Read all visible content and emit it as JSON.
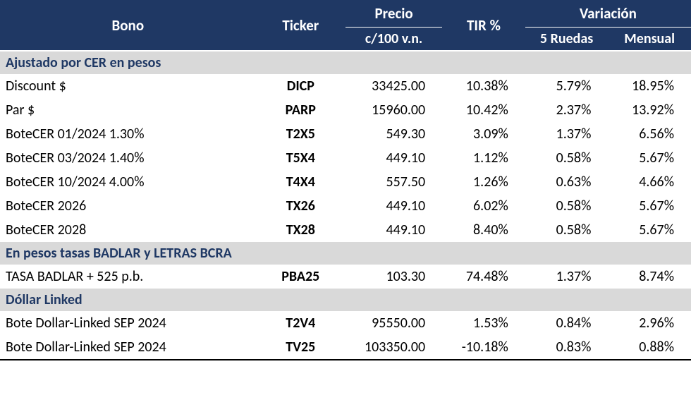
{
  "header": {
    "bono": "Bono",
    "ticker": "Ticker",
    "precio_top": "Precio",
    "precio_sub": "c/100 v.n.",
    "tir": "TIR %",
    "variacion_top": "Variación",
    "variacion_5ruedas": "5 Ruedas",
    "variacion_mensual": "Mensual"
  },
  "styling": {
    "header_bg": "#1f3864",
    "header_fg": "#ffffff",
    "section_bg": "#d9d9d9",
    "section_fg": "#1f3864",
    "body_fg": "#000000",
    "header_fontsize": 21,
    "header_sub_fontsize": 20,
    "section_fontsize": 20,
    "data_fontsize": 20,
    "col_widths_pct": {
      "bono": 37,
      "ticker": 13,
      "precio": 14,
      "tir": 12,
      "ruedas5": 12,
      "mensual": 12
    }
  },
  "sections": [
    {
      "title": "Ajustado por CER en pesos",
      "rows": [
        {
          "bono": "Discount $",
          "ticker": "DICP",
          "precio": "33425.00",
          "tir": "10.38%",
          "ruedas5": "5.79%",
          "mensual": "18.95%"
        },
        {
          "bono": "Par $",
          "ticker": "PARP",
          "precio": "15960.00",
          "tir": "10.42%",
          "ruedas5": "2.37%",
          "mensual": "13.92%"
        },
        {
          "bono": "BoteCER  01/2024  1.30%",
          "ticker": "T2X5",
          "precio": "549.30",
          "tir": "3.09%",
          "ruedas5": "1.37%",
          "mensual": "6.56%"
        },
        {
          "bono": "BoteCER 03/2024  1.40%",
          "ticker": "T5X4",
          "precio": "449.10",
          "tir": "1.12%",
          "ruedas5": "0.58%",
          "mensual": "5.67%"
        },
        {
          "bono": "BoteCER 10/2024  4.00%",
          "ticker": "T4X4",
          "precio": "557.50",
          "tir": "1.26%",
          "ruedas5": "0.63%",
          "mensual": "4.66%"
        },
        {
          "bono": "BoteCER 2026",
          "ticker": "TX26",
          "precio": "449.10",
          "tir": "6.02%",
          "ruedas5": "0.58%",
          "mensual": "5.67%"
        },
        {
          "bono": "BoteCER 2028",
          "ticker": "TX28",
          "precio": "449.10",
          "tir": "8.40%",
          "ruedas5": "0.58%",
          "mensual": "5.67%"
        }
      ]
    },
    {
      "title": "En pesos tasas BADLAR y LETRAS BCRA",
      "rows": [
        {
          "bono": "TASA BADLAR + 525 p.b.",
          "ticker": "PBA25",
          "precio": "103.30",
          "tir": "74.48%",
          "ruedas5": "1.37%",
          "mensual": "8.74%"
        }
      ]
    },
    {
      "title": "Dóllar Linked",
      "rows": [
        {
          "bono": "Bote Dollar-Linked SEP 2024",
          "ticker": "T2V4",
          "precio": "95550.00",
          "tir": "1.53%",
          "ruedas5": "0.84%",
          "mensual": "2.96%"
        },
        {
          "bono": "Bote Dollar-Linked SEP 2024",
          "ticker": "TV25",
          "precio": "103350.00",
          "tir": "-10.18%",
          "ruedas5": "0.83%",
          "mensual": "0.88%"
        }
      ]
    }
  ]
}
